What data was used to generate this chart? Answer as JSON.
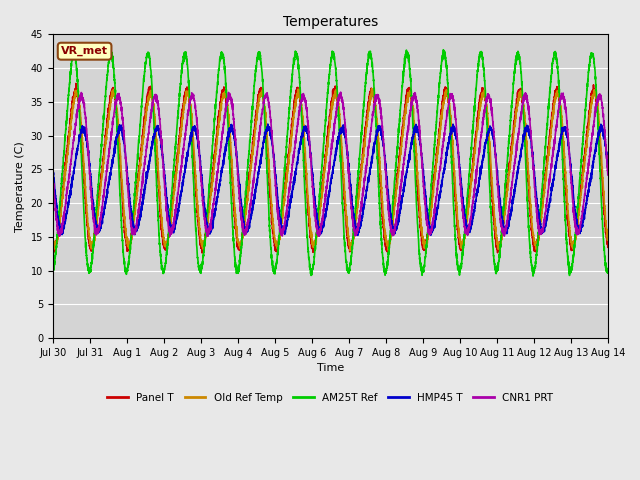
{
  "title": "Temperatures",
  "xlabel": "Time",
  "ylabel": "Temperature (C)",
  "ylim": [
    0,
    45
  ],
  "yticks": [
    0,
    5,
    10,
    15,
    20,
    25,
    30,
    35,
    40,
    45
  ],
  "annotation_text": "VR_met",
  "annotation_box_color": "#ffffc0",
  "annotation_box_edge": "#8B4513",
  "bg_color": "#e8e8e8",
  "plot_bg_color": "#d4d4d4",
  "grid_color": "white",
  "series": [
    {
      "label": "Panel T",
      "color": "#cc0000",
      "lw": 1.2,
      "phase": 0.0,
      "amp_scale": 1.0,
      "min_t": 12.0,
      "max_t": 38.0
    },
    {
      "label": "Old Ref Temp",
      "color": "#cc8800",
      "lw": 1.2,
      "phase": 0.02,
      "amp_scale": 1.0,
      "min_t": 12.5,
      "max_t": 37.5
    },
    {
      "label": "AM25T Ref",
      "color": "#00cc00",
      "lw": 1.2,
      "phase": -0.05,
      "amp_scale": 1.15,
      "min_t": 10.5,
      "max_t": 41.5
    },
    {
      "label": "HMP45 T",
      "color": "#0000cc",
      "lw": 1.2,
      "phase": 0.2,
      "amp_scale": 0.8,
      "min_t": 13.0,
      "max_t": 34.0
    },
    {
      "label": "CNR1 PRT",
      "color": "#aa00aa",
      "lw": 1.2,
      "phase": 0.15,
      "amp_scale": 0.88,
      "min_t": 13.0,
      "max_t": 38.5
    }
  ],
  "x_start_days": 0,
  "x_end_days": 15,
  "num_points": 5000,
  "xtick_labels": [
    "Jul 30",
    "Jul 31",
    "Aug 1",
    "Aug 2",
    "Aug 3",
    "Aug 4",
    "Aug 5",
    "Aug 6",
    "Aug 7",
    "Aug 8",
    "Aug 9",
    "Aug 10",
    "Aug 11",
    "Aug 12",
    "Aug 13",
    "Aug 14"
  ],
  "xtick_positions": [
    0,
    1,
    2,
    3,
    4,
    5,
    6,
    7,
    8,
    9,
    10,
    11,
    12,
    13,
    14,
    15
  ]
}
